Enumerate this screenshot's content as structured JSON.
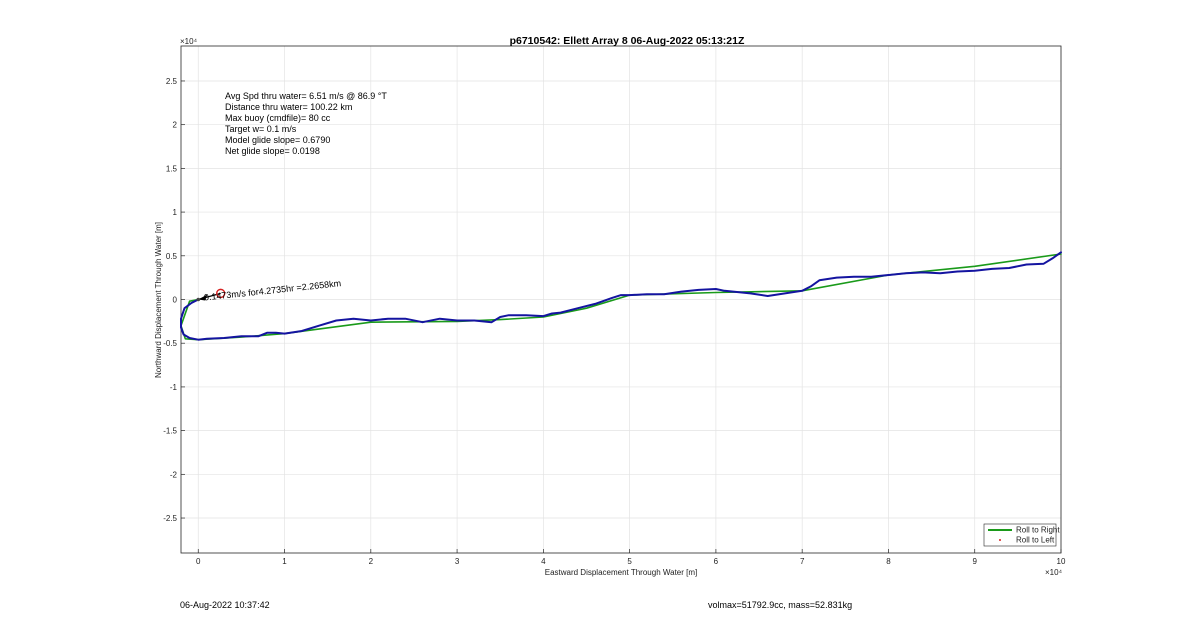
{
  "chart_data": {
    "type": "line",
    "title": "p6710542: Ellett Array 8 06-Aug-2022 05:13:21Z",
    "xlabel": "Eastward Displacement Through Water [m]",
    "ylabel": "Northward Displacement Through Water [m]",
    "xlim": [
      -0.2,
      10
    ],
    "ylim": [
      -2.9,
      2.9
    ],
    "x_ticks": [
      0,
      1,
      2,
      3,
      4,
      5,
      6,
      7,
      8,
      9,
      10
    ],
    "y_ticks": [
      -2.5,
      -2,
      -1.5,
      -1,
      -0.5,
      0,
      0.5,
      1,
      1.5,
      2,
      2.5
    ],
    "x_exponent": "×10⁴",
    "y_exponent": "×10⁴",
    "grid": true,
    "legend_position": "bottom-right",
    "annotations": [
      "Avg Spd thru water=  6.51 m/s @  86.9 °T",
      "Distance thru water= 100.22 km",
      "Max buoy (cmdfile)= 80 cc",
      "Target w= 0.1 m/s",
      "Model glide slope= 0.6790",
      "Net glide slope= 0.0198"
    ],
    "current_label": "0.1473m/s for4.2735hr =2.2658km",
    "series": [
      {
        "name": "Roll to Right",
        "color": "#1a9a1a",
        "style": "line",
        "x": [
          0,
          -0.1,
          -0.2,
          -0.15,
          0,
          0.5,
          1,
          2,
          3,
          3.5,
          4,
          4.5,
          5,
          6,
          7,
          8,
          9,
          10
        ],
        "y": [
          0,
          -0.02,
          -0.3,
          -0.45,
          -0.46,
          -0.43,
          -0.39,
          -0.26,
          -0.25,
          -0.23,
          -0.2,
          -0.1,
          0.05,
          0.08,
          0.1,
          0.28,
          0.38,
          0.52
        ]
      },
      {
        "name": "Roll to Left",
        "color": "#d62020",
        "style": "marker",
        "x": [],
        "y": []
      },
      {
        "name": "",
        "color": "#1414a0",
        "style": "line",
        "x": [
          0,
          -0.08,
          -0.16,
          -0.2,
          -0.2,
          -0.17,
          -0.1,
          0,
          0.1,
          0.3,
          0.5,
          0.7,
          0.8,
          0.9,
          1,
          1.2,
          1.4,
          1.6,
          1.8,
          2,
          2.2,
          2.4,
          2.6,
          2.8,
          3,
          3.2,
          3.4,
          3.5,
          3.6,
          3.8,
          4,
          4.1,
          4.2,
          4.4,
          4.6,
          4.8,
          4.9,
          5,
          5.2,
          5.4,
          5.6,
          5.8,
          6,
          6.1,
          6.2,
          6.4,
          6.6,
          6.8,
          7,
          7.1,
          7.2,
          7.4,
          7.6,
          7.8,
          8,
          8.2,
          8.4,
          8.6,
          8.8,
          9,
          9.2,
          9.4,
          9.6,
          9.8,
          9.9,
          10
        ],
        "y": [
          0,
          -0.04,
          -0.1,
          -0.22,
          -0.32,
          -0.4,
          -0.44,
          -0.46,
          -0.45,
          -0.44,
          -0.42,
          -0.42,
          -0.38,
          -0.38,
          -0.39,
          -0.36,
          -0.3,
          -0.24,
          -0.22,
          -0.24,
          -0.22,
          -0.22,
          -0.26,
          -0.22,
          -0.24,
          -0.24,
          -0.26,
          -0.2,
          -0.18,
          -0.18,
          -0.19,
          -0.16,
          -0.15,
          -0.1,
          -0.05,
          0.02,
          0.05,
          0.05,
          0.06,
          0.06,
          0.09,
          0.11,
          0.12,
          0.1,
          0.09,
          0.07,
          0.04,
          0.07,
          0.1,
          0.15,
          0.22,
          0.25,
          0.26,
          0.26,
          0.28,
          0.3,
          0.31,
          0.3,
          0.32,
          0.33,
          0.35,
          0.36,
          0.4,
          0.41,
          0.47,
          0.54
        ]
      }
    ]
  },
  "footer": {
    "timestamp": "06-Aug-2022 10:37:42",
    "volume_mass": "volmax=51792.9cc, mass=52.831kg"
  }
}
